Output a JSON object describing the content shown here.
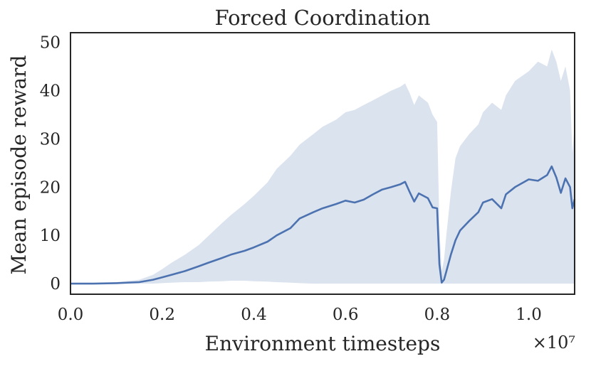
{
  "chart_data": {
    "type": "line",
    "title": "Forced Coordination",
    "xlabel": "Environment timesteps",
    "ylabel": "Mean episode reward",
    "x_offset_label": "×10⁷",
    "x_scale_note": "x values in units of 1e7 timesteps",
    "xlim": [
      0.0,
      1.1
    ],
    "ylim": [
      -2.2,
      52
    ],
    "xticks": [
      0.0,
      0.2,
      0.4,
      0.6,
      0.8,
      1.0
    ],
    "xtick_labels": [
      "0.0",
      "0.2",
      "0.4",
      "0.6",
      "0.8",
      "1.0"
    ],
    "yticks": [
      0,
      10,
      20,
      30,
      40,
      50
    ],
    "ytick_labels": [
      "0",
      "10",
      "20",
      "30",
      "40",
      "50"
    ],
    "grid": false,
    "series": [
      {
        "name": "",
        "color": "#4c72b0",
        "band_color": "#dbe3ef",
        "x": [
          0.0,
          0.05,
          0.1,
          0.15,
          0.18,
          0.2,
          0.22,
          0.25,
          0.28,
          0.3,
          0.33,
          0.35,
          0.38,
          0.4,
          0.43,
          0.45,
          0.48,
          0.5,
          0.53,
          0.55,
          0.58,
          0.6,
          0.62,
          0.64,
          0.66,
          0.68,
          0.7,
          0.72,
          0.73,
          0.74,
          0.75,
          0.76,
          0.78,
          0.79,
          0.8,
          0.805,
          0.81,
          0.815,
          0.82,
          0.83,
          0.84,
          0.85,
          0.87,
          0.89,
          0.9,
          0.92,
          0.94,
          0.95,
          0.97,
          1.0,
          1.02,
          1.04,
          1.05,
          1.06,
          1.07,
          1.08,
          1.09,
          1.095,
          1.1
        ],
        "mean": [
          0.0,
          0.0,
          0.1,
          0.3,
          0.8,
          1.3,
          1.8,
          2.6,
          3.6,
          4.3,
          5.3,
          6.0,
          6.8,
          7.5,
          8.7,
          10.0,
          11.5,
          13.5,
          14.8,
          15.6,
          16.5,
          17.2,
          16.8,
          17.4,
          18.5,
          19.5,
          20.0,
          20.6,
          21.1,
          19.0,
          17.0,
          18.7,
          17.7,
          15.8,
          15.6,
          4.0,
          0.2,
          0.8,
          2.5,
          6.0,
          9.0,
          11.0,
          13.0,
          14.8,
          16.8,
          17.5,
          15.6,
          18.5,
          20.0,
          21.6,
          21.3,
          22.5,
          24.3,
          22.0,
          18.8,
          21.8,
          20.0,
          15.6,
          17.5
        ],
        "upper": [
          0.0,
          0.1,
          0.3,
          0.8,
          1.8,
          3.0,
          4.3,
          6.0,
          8.0,
          9.8,
          12.5,
          14.2,
          16.5,
          18.2,
          21.0,
          23.8,
          26.5,
          28.8,
          31.0,
          32.5,
          34.0,
          35.5,
          36.0,
          37.0,
          38.0,
          39.0,
          40.0,
          40.8,
          41.5,
          39.5,
          37.0,
          39.0,
          37.5,
          35.0,
          33.5,
          12.0,
          2.5,
          5.0,
          10.0,
          19.0,
          26.0,
          28.5,
          31.0,
          33.0,
          35.5,
          37.5,
          36.0,
          39.0,
          42.0,
          44.0,
          46.0,
          45.0,
          48.5,
          46.0,
          42.0,
          45.0,
          40.0,
          27.0,
          33.0
        ],
        "lower": [
          0.0,
          0.0,
          0.0,
          0.0,
          0.0,
          0.1,
          0.2,
          0.3,
          0.3,
          0.4,
          0.5,
          0.6,
          0.6,
          0.5,
          0.4,
          0.3,
          0.2,
          0.1,
          0.0,
          0.0,
          0.0,
          0.0,
          0.0,
          0.0,
          0.0,
          0.0,
          0.0,
          0.0,
          0.0,
          0.0,
          0.0,
          0.0,
          0.0,
          0.0,
          0.0,
          0.0,
          0.0,
          0.0,
          0.0,
          0.0,
          0.0,
          0.0,
          0.0,
          0.0,
          0.0,
          0.0,
          0.0,
          0.0,
          0.0,
          0.0,
          0.0,
          0.0,
          0.0,
          0.0,
          0.0,
          0.0,
          0.0,
          0.0,
          0.0
        ]
      }
    ]
  }
}
